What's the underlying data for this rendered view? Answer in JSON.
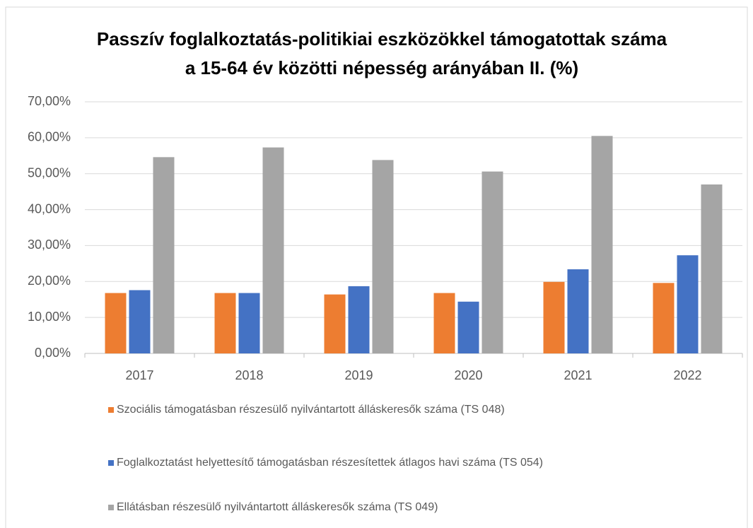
{
  "chart_data": {
    "type": "bar",
    "title": [
      "Passzív foglalkoztatás-politikiai eszközökkel támogatottak száma",
      "a 15-64 év közötti népesség  arányában II. (%)"
    ],
    "categories": [
      "2017",
      "2018",
      "2019",
      "2020",
      "2021",
      "2022"
    ],
    "series": [
      {
        "name": "Szociális támogatásban részesülő nyilvántartott álláskeresők száma (TS 048)",
        "color": "#ed7d31",
        "values": [
          16.8,
          16.8,
          16.4,
          16.8,
          19.9,
          19.6
        ]
      },
      {
        "name": "Foglalkoztatást helyettesítő támogatásban részesítettek átlagos havi száma (TS 054)",
        "color": "#4472c4",
        "values": [
          17.6,
          16.8,
          18.7,
          14.4,
          23.4,
          27.3
        ]
      },
      {
        "name": "Ellátásban részesülő nyilvántartott álláskeresők száma (TS 049)",
        "color": "#a5a5a5",
        "values": [
          54.6,
          57.3,
          53.8,
          50.6,
          60.5,
          47.0
        ]
      }
    ],
    "ylim": [
      0,
      70
    ],
    "yticks": [
      {
        "value": 0,
        "label": "0,00%"
      },
      {
        "value": 10,
        "label": "10,00%"
      },
      {
        "value": 20,
        "label": "20,00%"
      },
      {
        "value": 30,
        "label": "30,00%"
      },
      {
        "value": 40,
        "label": "40,00%"
      },
      {
        "value": 50,
        "label": "50,00%"
      },
      {
        "value": 60,
        "label": "60,00%"
      },
      {
        "value": 70,
        "label": "70,00%"
      }
    ],
    "grid": true
  }
}
